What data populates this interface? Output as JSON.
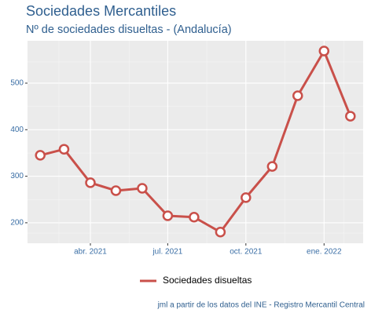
{
  "chart_data": {
    "type": "line",
    "title": "Sociedades Mercantiles",
    "subtitle": "Nº de sociedades disueltas - (Andalucía)",
    "caption": "jml a partir de los datos del INE - Registro Mercantil Central",
    "x": [
      "2021-02",
      "2021-03",
      "2021-04",
      "2021-05",
      "2021-06",
      "2021-07",
      "2021-08",
      "2021-09",
      "2021-10",
      "2021-11",
      "2021-12",
      "2022-01",
      "2022-02"
    ],
    "series": [
      {
        "name": "Sociedades disueltas",
        "color": "#c9504a",
        "values": [
          345,
          358,
          286,
          269,
          274,
          215,
          212,
          180,
          254,
          321,
          473,
          569,
          429
        ]
      }
    ],
    "xlim": [
      "2021-01-17",
      "2022-02-16"
    ],
    "xticks": [
      {
        "value": "2021-04",
        "label": "abr. 2021"
      },
      {
        "value": "2021-07",
        "label": "jul. 2021"
      },
      {
        "value": "2021-10",
        "label": "oct. 2021"
      },
      {
        "value": "2022-01",
        "label": "ene. 2022"
      }
    ],
    "ylim": [
      156,
      591
    ],
    "yticks": [
      200,
      300,
      400,
      500
    ],
    "grid": true,
    "legend": "bottom"
  }
}
